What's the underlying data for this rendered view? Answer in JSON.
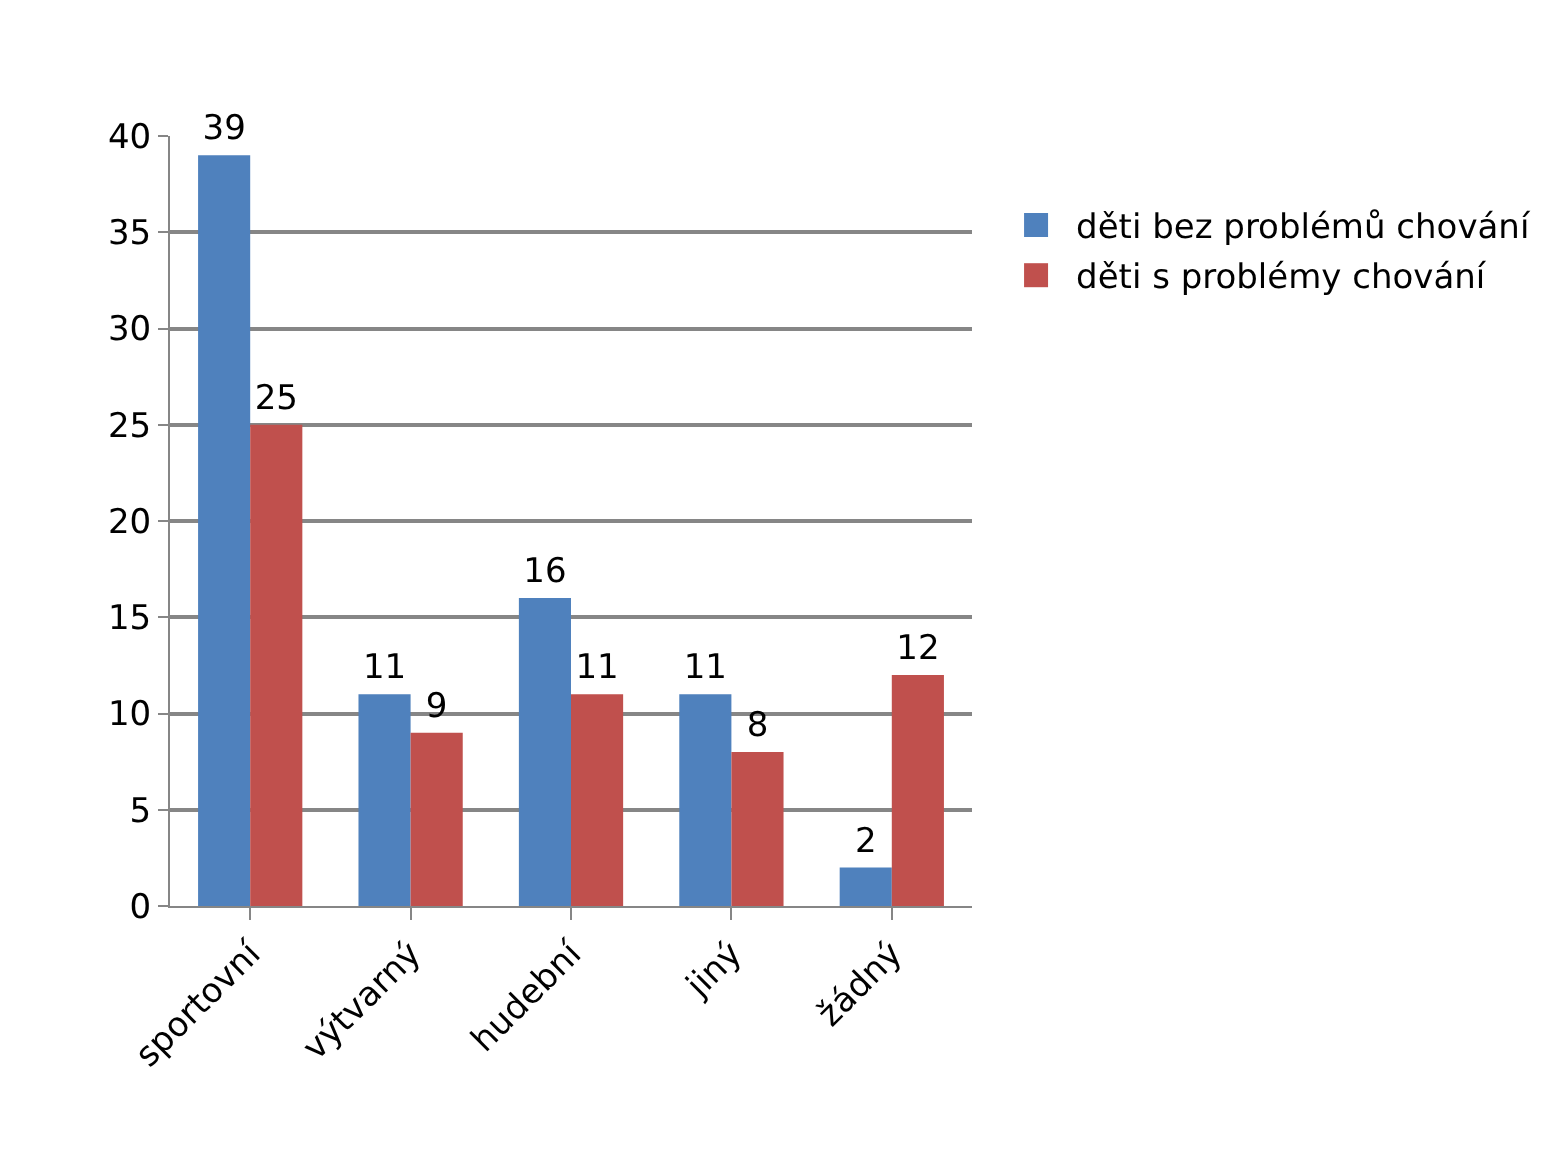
{
  "chart_data": {
    "type": "bar",
    "categories": [
      "sportovní",
      "výtvarný",
      "hudební",
      "jiný",
      "žádný"
    ],
    "series": [
      {
        "name": "děti bez problémů chování",
        "color": "#4f81bd",
        "values": [
          39,
          11,
          16,
          11,
          2
        ]
      },
      {
        "name": "děti s problémy chování",
        "color": "#c0504d",
        "values": [
          25,
          9,
          11,
          8,
          12
        ]
      }
    ],
    "ylim": [
      0,
      40
    ],
    "yticks": [
      0,
      5,
      10,
      15,
      20,
      25,
      30,
      35,
      40
    ],
    "grid": "y",
    "legend": "right",
    "data_labels": true
  }
}
